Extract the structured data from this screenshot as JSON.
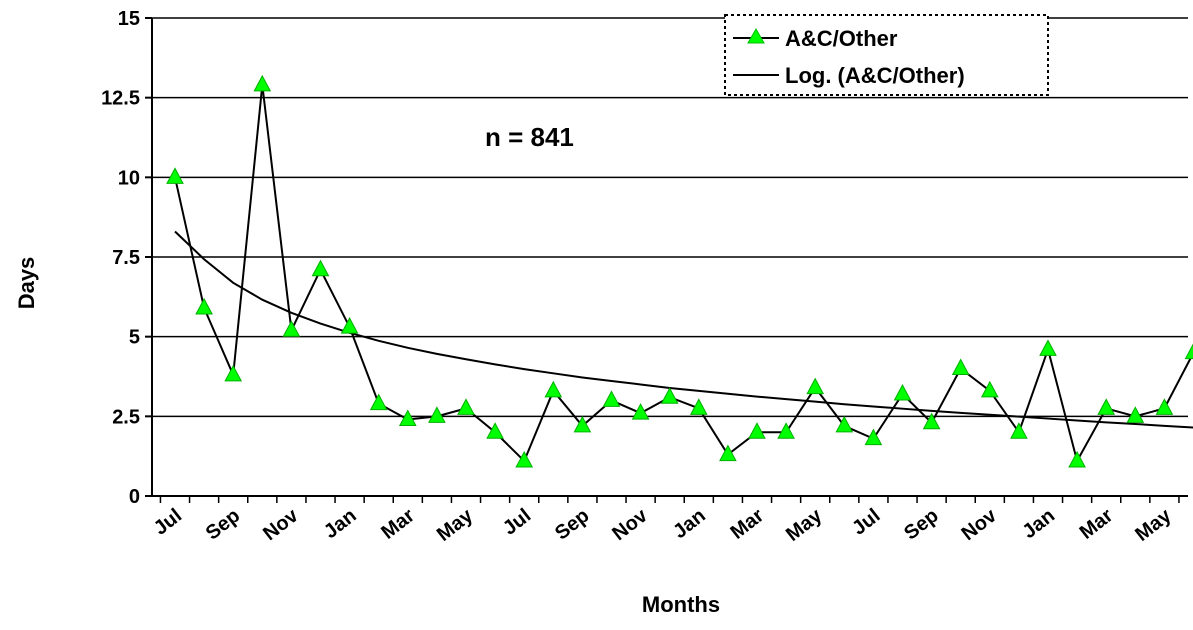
{
  "chart_data": {
    "type": "line",
    "title": "",
    "xlabel": "Months",
    "ylabel": "Days",
    "ylim": [
      0,
      15
    ],
    "yticks": [
      "0",
      "2.5",
      "5",
      "7.5",
      "10",
      "12.5",
      "15"
    ],
    "xtick_labels": [
      "Jul",
      "Sep",
      "Nov",
      "Jan",
      "Mar",
      "May",
      "Jul",
      "Sep",
      "Nov",
      "Jan",
      "Mar",
      "May",
      "Jul",
      "Sep",
      "Nov",
      "Jan",
      "Mar",
      "May"
    ],
    "grid": "horizontal",
    "legend_position": "top-right",
    "annotation": "n = 841",
    "series": [
      {
        "name": "A&C/Other",
        "marker": "triangle",
        "color": "#00ff00",
        "values": [
          10,
          5.9,
          3.8,
          12.9,
          5.2,
          7.1,
          5.3,
          2.9,
          2.4,
          2.5,
          2.75,
          2.0,
          1.1,
          3.3,
          2.2,
          3.0,
          2.6,
          3.1,
          2.75,
          1.3,
          2.0,
          2.0,
          3.4,
          2.2,
          1.8,
          3.2,
          2.3,
          4.0,
          3.3,
          2.0,
          4.6,
          1.1,
          2.75,
          2.5,
          2.75,
          4.5
        ]
      },
      {
        "name": "Log. (A&C/Other)",
        "type": "logarithmic-trendline",
        "color": "#000000",
        "values": [
          8.3,
          7.43,
          6.69,
          6.16,
          5.75,
          5.41,
          5.12,
          4.87,
          4.65,
          4.46,
          4.29,
          4.13,
          3.98,
          3.85,
          3.72,
          3.61,
          3.5,
          3.39,
          3.3,
          3.21,
          3.12,
          3.04,
          2.96,
          2.88,
          2.81,
          2.74,
          2.67,
          2.61,
          2.55,
          2.49,
          2.43,
          2.37,
          2.31,
          2.26,
          2.2,
          2.15
        ]
      }
    ]
  }
}
